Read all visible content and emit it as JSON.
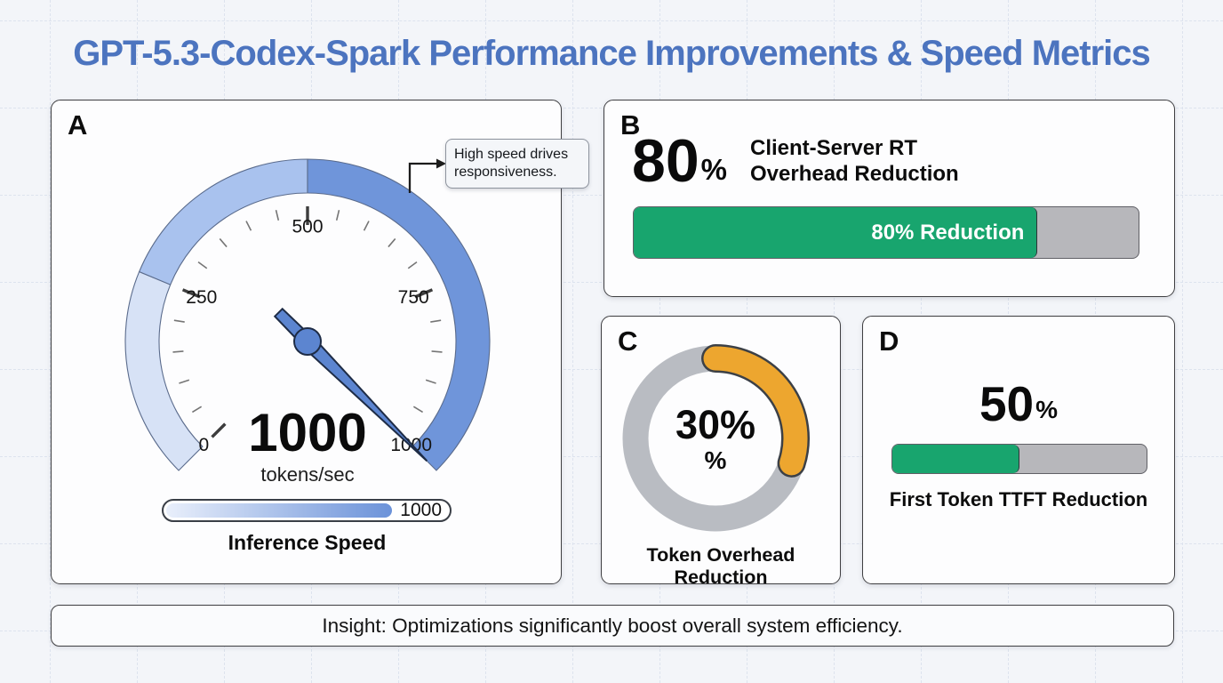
{
  "title": "GPT-5.3-Codex-Spark Performance Improvements & Speed Metrics",
  "insight": "Insight: Optimizations significantly boost overall system efficiency.",
  "colors": {
    "title_blue": "#4c74bf",
    "green": "#18a56e",
    "orange": "#eda62f",
    "track_gray": "#b7b7bb",
    "gauge_blue": "#5c85d0"
  },
  "chart_data": [
    {
      "panel": "A",
      "type": "gauge",
      "title": "Inference Speed",
      "value": 1000,
      "display_value": "1000",
      "units": "tokens/sec",
      "min": 0,
      "max": 1000,
      "major_ticks": [
        0,
        250,
        500,
        750,
        1000
      ],
      "minor_tick_step": 50,
      "segments": [
        {
          "from": 0,
          "to": 250,
          "color": "#d7e2f6"
        },
        {
          "from": 250,
          "to": 500,
          "color": "#a9c2ee"
        },
        {
          "from": 500,
          "to": 1000,
          "color": "#6f95da"
        }
      ],
      "needle_color": "#5c85d0",
      "linear_scale_value_label": "1000",
      "annotation": "High speed drives responsiveness."
    },
    {
      "panel": "B",
      "type": "bar",
      "title_lines": [
        "Client-Server RT",
        "Overhead Reduction"
      ],
      "headline_value": "80",
      "headline_unit": "%",
      "value": 80,
      "max": 100,
      "bar_label": "80% Reduction",
      "bar_color": "#18a56e",
      "track_color": "#b7b7bb"
    },
    {
      "panel": "C",
      "type": "donut",
      "title": "Token Overhead Reduction",
      "center_value": "30%",
      "center_sub": "%",
      "value": 30,
      "max": 100,
      "arc_color": "#eda62f",
      "ring_color": "#b9bcc2"
    },
    {
      "panel": "D",
      "type": "bar",
      "title": "First Token TTFT Reduction",
      "headline_value": "50",
      "headline_unit": "%",
      "value": 50,
      "max": 100,
      "bar_color": "#18a56e",
      "track_color": "#b7b7bb"
    }
  ]
}
